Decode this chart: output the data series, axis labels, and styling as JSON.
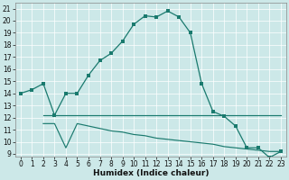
{
  "xlabel": "Humidex (Indice chaleur)",
  "bg_color": "#cce8e8",
  "line_color": "#1a7a6e",
  "xlim": [
    -0.5,
    23.5
  ],
  "ylim": [
    8.8,
    21.5
  ],
  "yticks": [
    9,
    10,
    11,
    12,
    13,
    14,
    15,
    16,
    17,
    18,
    19,
    20,
    21
  ],
  "xticks": [
    0,
    1,
    2,
    3,
    4,
    5,
    6,
    7,
    8,
    9,
    10,
    11,
    12,
    13,
    14,
    15,
    16,
    17,
    18,
    19,
    20,
    21,
    22,
    23
  ],
  "main_x": [
    0,
    1,
    2,
    3,
    4,
    5,
    6,
    7,
    8,
    9,
    10,
    11,
    12,
    13,
    14,
    15,
    16,
    17,
    18,
    19,
    20,
    21,
    22,
    23
  ],
  "main_y": [
    14.0,
    14.3,
    14.8,
    12.2,
    14.0,
    14.0,
    15.5,
    16.7,
    17.3,
    18.3,
    19.7,
    20.4,
    20.3,
    20.8,
    20.3,
    19.0,
    14.8,
    12.5,
    12.1,
    11.3,
    9.5,
    9.5,
    8.7,
    9.2
  ],
  "flat1_x": [
    2,
    3,
    4,
    5,
    6,
    7,
    8,
    9,
    10,
    11,
    12,
    13,
    14,
    15,
    16,
    17,
    18,
    19,
    20,
    21,
    22,
    23
  ],
  "flat1_y": [
    12.2,
    12.2,
    12.2,
    12.2,
    12.2,
    12.2,
    12.2,
    12.2,
    12.2,
    12.2,
    12.2,
    12.2,
    12.2,
    12.2,
    12.2,
    12.2,
    12.2,
    12.2,
    12.2,
    12.2,
    12.2,
    12.2
  ],
  "line2_x": [
    2,
    3,
    4,
    5,
    6,
    7,
    8,
    9,
    10,
    11,
    12,
    13,
    14,
    15,
    16,
    17,
    18,
    19,
    20,
    21,
    22,
    23
  ],
  "line2_y": [
    11.5,
    11.5,
    9.5,
    11.5,
    11.3,
    11.1,
    10.9,
    10.8,
    10.6,
    10.5,
    10.3,
    10.2,
    10.1,
    10.0,
    9.9,
    9.8,
    9.6,
    9.5,
    9.4,
    9.3,
    9.2,
    9.2
  ],
  "grid_color": "#ffffff",
  "tick_fontsize": 5.5,
  "xlabel_fontsize": 6.5
}
